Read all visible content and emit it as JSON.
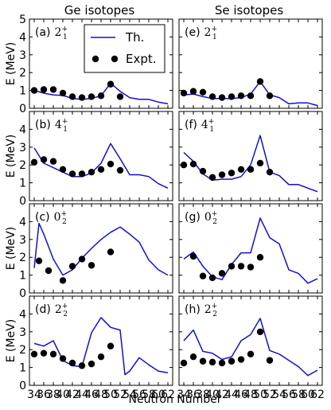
{
  "columns": [
    {
      "title": "Ge isotopes"
    },
    {
      "title": "Se isotopes"
    }
  ],
  "legend": {
    "theory_label": "Th.",
    "expt_label": "Expt.",
    "placement": "top-left of panel (a)"
  },
  "colors": {
    "theory": "#1010d0",
    "expt": "#000000"
  },
  "chart_data": {
    "type": "line",
    "xlabel": "Neutron Number",
    "ylabel": "E (MeV)",
    "xlim": [
      33,
      63
    ],
    "ylim": [
      0,
      5
    ],
    "xticks": [
      34,
      36,
      38,
      40,
      42,
      44,
      46,
      48,
      50,
      52,
      54,
      56,
      58,
      60,
      62
    ],
    "yticks": [
      0,
      1,
      2,
      3,
      4,
      5
    ],
    "grid": false,
    "panels": [
      {
        "id": "a",
        "label": "(a)",
        "state": "2",
        "sup": "+",
        "sub": "1",
        "theory": {
          "x": [
            34,
            36,
            38,
            40,
            42,
            44,
            46,
            48,
            50,
            52,
            54,
            56,
            58,
            60,
            62
          ],
          "y": [
            1.0,
            0.85,
            0.75,
            0.72,
            0.55,
            0.5,
            0.55,
            0.7,
            1.4,
            0.95,
            0.6,
            0.5,
            0.5,
            0.35,
            0.25
          ]
        },
        "expt": {
          "x": [
            34,
            36,
            38,
            40,
            42,
            44,
            46,
            48,
            50,
            52
          ],
          "y": [
            1.0,
            1.05,
            1.05,
            0.85,
            0.65,
            0.6,
            0.65,
            0.7,
            1.35,
            0.65
          ]
        }
      },
      {
        "id": "e",
        "label": "(e)",
        "state": "2",
        "sup": "+",
        "sub": "1",
        "theory": {
          "x": [
            34,
            36,
            38,
            40,
            42,
            44,
            46,
            48,
            50,
            52,
            54,
            56,
            58,
            60,
            62
          ],
          "y": [
            0.75,
            0.8,
            0.65,
            0.55,
            0.55,
            0.55,
            0.6,
            0.8,
            1.5,
            0.75,
            0.6,
            0.25,
            0.3,
            0.3,
            0.15
          ]
        },
        "expt": {
          "x": [
            34,
            36,
            38,
            40,
            42,
            44,
            46,
            48,
            50,
            52
          ],
          "y": [
            0.85,
            0.95,
            0.9,
            0.65,
            0.6,
            0.65,
            0.7,
            0.7,
            1.5,
            0.7
          ]
        }
      },
      {
        "id": "b",
        "label": "(b)",
        "state": "4",
        "sup": "+",
        "sub": "1",
        "theory": {
          "x": [
            34,
            36,
            38,
            40,
            42,
            44,
            46,
            48,
            50,
            52,
            54,
            56,
            58,
            60,
            62
          ],
          "y": [
            2.95,
            2.1,
            1.85,
            1.6,
            1.35,
            1.35,
            1.55,
            2.1,
            3.2,
            2.35,
            1.45,
            1.45,
            1.35,
            0.95,
            0.7
          ]
        },
        "expt": {
          "x": [
            34,
            36,
            38,
            40,
            42,
            44,
            46,
            48,
            50,
            52
          ],
          "y": [
            2.15,
            2.3,
            2.2,
            1.75,
            1.5,
            1.5,
            1.6,
            1.75,
            2.05,
            1.7
          ]
        }
      },
      {
        "id": "f",
        "label": "(f)",
        "state": "4",
        "sup": "+",
        "sub": "1",
        "theory": {
          "x": [
            34,
            36,
            38,
            40,
            42,
            44,
            46,
            48,
            50,
            52,
            54,
            56,
            58,
            60,
            62
          ],
          "y": [
            2.7,
            2.2,
            1.5,
            1.15,
            1.2,
            1.2,
            1.35,
            2.0,
            3.65,
            1.6,
            1.4,
            0.9,
            0.9,
            0.7,
            0.5
          ]
        },
        "expt": {
          "x": [
            34,
            36,
            38,
            40,
            42,
            44,
            46,
            48,
            50,
            52
          ],
          "y": [
            2.0,
            2.05,
            1.65,
            1.3,
            1.45,
            1.55,
            1.75,
            1.75,
            2.1,
            1.6
          ]
        }
      },
      {
        "id": "c",
        "label": "(c)",
        "state": "0",
        "sup": "+",
        "sub": "2",
        "theory": {
          "x": [
            34,
            35,
            36,
            38,
            40,
            42,
            44,
            46,
            48,
            50,
            52,
            54,
            56,
            58,
            60,
            62
          ],
          "y": [
            1.4,
            3.9,
            3.3,
            1.9,
            1.0,
            1.3,
            1.95,
            2.5,
            3.0,
            3.4,
            3.7,
            3.3,
            2.85,
            1.85,
            1.3,
            1.0
          ]
        },
        "expt": {
          "x": [
            35,
            37,
            40,
            42,
            44,
            46,
            50
          ],
          "y": [
            1.8,
            1.25,
            0.7,
            1.5,
            1.9,
            1.55,
            2.3
          ]
        }
      },
      {
        "id": "g",
        "label": "(g)",
        "state": "0",
        "sup": "+",
        "sub": "2",
        "theory": {
          "x": [
            34,
            36,
            38,
            40,
            42,
            44,
            46,
            48,
            50,
            52,
            54,
            56,
            58,
            60,
            62
          ],
          "y": [
            1.9,
            2.3,
            1.5,
            0.9,
            0.75,
            1.6,
            2.25,
            2.25,
            4.2,
            3.1,
            2.75,
            1.3,
            1.1,
            0.55,
            0.8
          ]
        },
        "expt": {
          "x": [
            36,
            38,
            40,
            42,
            44,
            46,
            48,
            50
          ],
          "y": [
            2.05,
            0.95,
            0.85,
            1.1,
            1.5,
            1.5,
            1.45,
            2.0
          ]
        }
      },
      {
        "id": "d",
        "label": "(d)",
        "state": "2",
        "sup": "+",
        "sub": "2",
        "theory": {
          "x": [
            34,
            36,
            38,
            40,
            42,
            44,
            46,
            48,
            50,
            52,
            53,
            54,
            56,
            58,
            60,
            62
          ],
          "y": [
            2.35,
            2.2,
            2.5,
            1.4,
            1.1,
            1.05,
            2.95,
            3.8,
            3.25,
            3.1,
            0.6,
            0.8,
            1.55,
            1.15,
            0.8,
            0.7
          ]
        },
        "expt": {
          "x": [
            34,
            36,
            38,
            40,
            42,
            44,
            46,
            48,
            50
          ],
          "y": [
            1.75,
            1.8,
            1.75,
            1.5,
            1.25,
            1.1,
            1.2,
            1.6,
            2.2
          ]
        }
      },
      {
        "id": "h",
        "label": "(h)",
        "state": "2",
        "sup": "+",
        "sub": "2",
        "theory": {
          "x": [
            34,
            36,
            38,
            40,
            42,
            44,
            46,
            48,
            50,
            52,
            54,
            56,
            58,
            60,
            62
          ],
          "y": [
            2.5,
            3.1,
            1.9,
            1.8,
            1.45,
            1.6,
            2.5,
            2.85,
            3.75,
            1.95,
            1.75,
            1.4,
            1.05,
            0.55,
            0.85
          ]
        },
        "expt": {
          "x": [
            34,
            36,
            38,
            40,
            42,
            44,
            46,
            48,
            50,
            52
          ],
          "y": [
            1.25,
            1.6,
            1.35,
            1.3,
            1.25,
            1.35,
            1.45,
            1.75,
            3.0,
            1.4
          ]
        }
      }
    ]
  }
}
